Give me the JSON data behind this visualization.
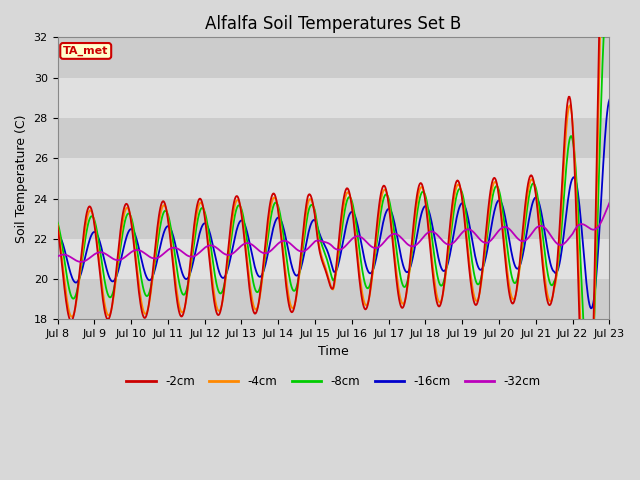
{
  "title": "Alfalfa Soil Temperatures Set B",
  "xlabel": "Time",
  "ylabel": "Soil Temperature (C)",
  "ylim": [
    18,
    32
  ],
  "xlim": [
    0,
    15
  ],
  "xtick_labels": [
    "Jul 8",
    "Jul 9",
    "Jul 10",
    "Jul 11",
    "Jul 12",
    "Jul 13",
    "Jul 14",
    "Jul 15",
    "Jul 16",
    "Jul 17",
    "Jul 18",
    "Jul 19",
    "Jul 20",
    "Jul 21",
    "Jul 22",
    "Jul 23"
  ],
  "ytick_labels": [
    "18",
    "20",
    "22",
    "24",
    "26",
    "28",
    "30",
    "32"
  ],
  "lines": [
    "-2cm",
    "-4cm",
    "-8cm",
    "-16cm",
    "-32cm"
  ],
  "colors": [
    "#cc0000",
    "#ff8800",
    "#00cc00",
    "#0000cc",
    "#bb00bb"
  ],
  "annotation_text": "TA_met",
  "annotation_box_facecolor": "#ffffcc",
  "annotation_text_color": "#cc0000",
  "annotation_border_color": "#cc0000",
  "fig_facecolor": "#d8d8d8",
  "band_dark": "#cccccc",
  "band_light": "#e0e0e0",
  "title_fontsize": 12,
  "tick_fontsize": 8,
  "label_fontsize": 9
}
